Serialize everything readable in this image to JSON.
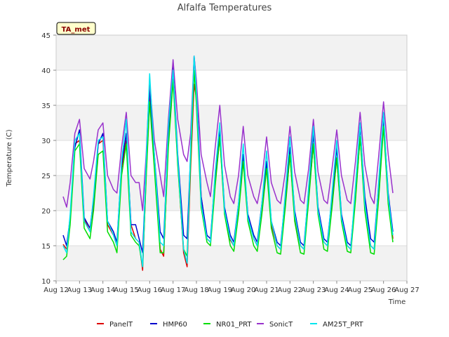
{
  "chart_data": {
    "type": "line",
    "title": "Alfalfa Temperatures",
    "xlabel": "Time",
    "ylabel": "Temperature (C)",
    "tag": "TA_met",
    "ylim": [
      10,
      45
    ],
    "xlim": [
      12,
      27
    ],
    "y_ticks": [
      10,
      15,
      20,
      25,
      30,
      35,
      40,
      45
    ],
    "x_ticks": [
      {
        "value": 12,
        "label": "Aug 12"
      },
      {
        "value": 13,
        "label": "Aug 13"
      },
      {
        "value": 14,
        "label": "Aug 14"
      },
      {
        "value": 15,
        "label": "Aug 15"
      },
      {
        "value": 16,
        "label": "Aug 16"
      },
      {
        "value": 17,
        "label": "Aug 17"
      },
      {
        "value": 18,
        "label": "Aug 18"
      },
      {
        "value": 19,
        "label": "Aug 19"
      },
      {
        "value": 20,
        "label": "Aug 20"
      },
      {
        "value": 21,
        "label": "Aug 21"
      },
      {
        "value": 22,
        "label": "Aug 22"
      },
      {
        "value": 23,
        "label": "Aug 23"
      },
      {
        "value": 24,
        "label": "Aug 24"
      },
      {
        "value": 25,
        "label": "Aug 25"
      },
      {
        "value": 26,
        "label": "Aug 26"
      },
      {
        "value": 27,
        "label": "Aug 27"
      }
    ],
    "grid": "horizontal bands",
    "legend_placement": "bottom",
    "series": [
      {
        "name": "PanelT",
        "color": "#dd0000",
        "x": [
          12.3,
          12.45,
          12.6,
          12.8,
          13.0,
          13.2,
          13.45,
          13.6,
          13.8,
          14.0,
          14.2,
          14.45,
          14.6,
          14.8,
          15.0,
          15.2,
          15.4,
          15.55,
          15.7,
          15.85,
          16.0,
          16.2,
          16.45,
          16.6,
          16.8,
          17.0,
          17.2,
          17.45,
          17.6,
          17.75,
          17.9,
          18.0,
          18.2,
          18.45,
          18.6,
          18.8,
          19.0,
          19.2,
          19.45,
          19.6,
          19.8,
          20.0,
          20.2,
          20.45,
          20.6,
          20.8,
          21.0,
          21.2,
          21.45,
          21.6,
          21.8,
          22.0,
          22.2,
          22.45,
          22.6,
          22.8,
          23.0,
          23.2,
          23.45,
          23.6,
          23.8,
          24.0,
          24.2,
          24.45,
          24.6,
          24.8,
          25.0,
          25.2,
          25.45,
          25.6,
          25.8,
          26.0,
          26.2,
          26.4
        ],
        "y": [
          15.2,
          14.5,
          18.5,
          29.5,
          30.0,
          18.8,
          17.0,
          21.0,
          29.5,
          30.0,
          18.0,
          16.5,
          15.0,
          26.0,
          30.0,
          18.0,
          16.0,
          15.5,
          11.5,
          25.0,
          36.0,
          27.0,
          14.5,
          13.5,
          30.0,
          39.0,
          27.0,
          14.0,
          12.0,
          26.0,
          38.0,
          36.0,
          22.0,
          16.0,
          15.5,
          24.0,
          30.5,
          20.0,
          15.8,
          15.0,
          20.0,
          27.5,
          19.0,
          16.0,
          15.0,
          20.0,
          26.5,
          18.0,
          15.0,
          14.5,
          21.0,
          28.0,
          19.0,
          15.0,
          14.5,
          22.0,
          29.5,
          20.0,
          15.5,
          15.0,
          21.0,
          27.5,
          19.0,
          15.0,
          14.5,
          22.0,
          30.5,
          21.0,
          15.0,
          14.5,
          23.0,
          32.5,
          22.0,
          16.0
        ]
      },
      {
        "name": "HMP60",
        "color": "#0000cc",
        "x": [
          12.3,
          12.45,
          12.6,
          12.8,
          13.0,
          13.2,
          13.45,
          13.6,
          13.8,
          14.0,
          14.2,
          14.45,
          14.6,
          14.8,
          15.0,
          15.2,
          15.4,
          15.55,
          15.7,
          15.85,
          16.0,
          16.2,
          16.45,
          16.6,
          16.8,
          17.0,
          17.2,
          17.45,
          17.6,
          17.75,
          17.9,
          18.0,
          18.2,
          18.45,
          18.6,
          18.8,
          19.0,
          19.2,
          19.45,
          19.6,
          19.8,
          20.0,
          20.2,
          20.45,
          20.6,
          20.8,
          21.0,
          21.2,
          21.45,
          21.6,
          21.8,
          22.0,
          22.2,
          22.45,
          22.6,
          22.8,
          23.0,
          23.2,
          23.45,
          23.6,
          23.8,
          24.0,
          24.2,
          24.45,
          24.6,
          24.8,
          25.0,
          25.2,
          25.45,
          25.6,
          25.8,
          26.0,
          26.2,
          26.4
        ],
        "y": [
          16.5,
          15.0,
          19.0,
          29.0,
          31.5,
          19.0,
          17.5,
          21.5,
          29.5,
          31.0,
          18.5,
          17.0,
          15.5,
          26.5,
          31.0,
          18.0,
          18.0,
          16.0,
          14.0,
          26.0,
          37.5,
          28.0,
          17.0,
          16.0,
          31.0,
          40.5,
          28.0,
          16.5,
          16.0,
          28.0,
          42.0,
          38.0,
          22.0,
          16.5,
          16.0,
          25.0,
          31.5,
          20.5,
          16.5,
          15.5,
          21.0,
          28.0,
          19.5,
          16.5,
          15.5,
          21.0,
          27.0,
          18.5,
          15.5,
          15.0,
          22.0,
          29.0,
          20.0,
          15.5,
          15.0,
          23.0,
          31.0,
          20.5,
          16.0,
          15.5,
          22.0,
          29.0,
          19.5,
          15.5,
          15.0,
          22.5,
          32.0,
          22.0,
          16.0,
          15.5,
          24.0,
          33.5,
          22.5,
          17.0
        ]
      },
      {
        "name": "NR01_PRT",
        "color": "#00dd00",
        "x": [
          12.3,
          12.45,
          12.6,
          12.8,
          13.0,
          13.2,
          13.45,
          13.6,
          13.8,
          14.0,
          14.2,
          14.45,
          14.6,
          14.8,
          15.0,
          15.2,
          15.4,
          15.55,
          15.7,
          15.85,
          16.0,
          16.2,
          16.45,
          16.6,
          16.8,
          17.0,
          17.2,
          17.45,
          17.6,
          17.75,
          17.9,
          18.0,
          18.2,
          18.45,
          18.6,
          18.8,
          19.0,
          19.2,
          19.45,
          19.6,
          19.8,
          20.0,
          20.2,
          20.45,
          20.6,
          20.8,
          21.0,
          21.2,
          21.45,
          21.6,
          21.8,
          22.0,
          22.2,
          22.45,
          22.6,
          22.8,
          23.0,
          23.2,
          23.45,
          23.6,
          23.8,
          24.0,
          24.2,
          24.45,
          24.6,
          24.8,
          25.0,
          25.2,
          25.45,
          25.6,
          25.8,
          26.0,
          26.2,
          26.4
        ],
        "y": [
          13.0,
          13.5,
          18.0,
          28.5,
          29.5,
          17.5,
          16.0,
          20.0,
          28.0,
          28.5,
          17.0,
          15.5,
          14.0,
          25.0,
          29.5,
          16.5,
          15.5,
          15.0,
          12.0,
          24.5,
          35.5,
          26.0,
          14.0,
          14.0,
          29.0,
          38.5,
          26.5,
          14.5,
          13.5,
          27.0,
          40.0,
          35.0,
          20.5,
          15.5,
          15.0,
          23.5,
          30.5,
          19.5,
          15.0,
          14.2,
          19.5,
          27.0,
          18.5,
          15.0,
          14.2,
          19.5,
          26.0,
          17.5,
          14.0,
          13.8,
          20.5,
          28.0,
          18.5,
          14.0,
          13.8,
          21.5,
          29.5,
          19.5,
          14.5,
          14.2,
          20.5,
          27.5,
          18.5,
          14.2,
          14.0,
          21.5,
          30.5,
          20.0,
          14.0,
          13.8,
          22.0,
          32.0,
          21.0,
          15.5
        ]
      },
      {
        "name": "SonicT",
        "color": "#9932cc",
        "x": [
          12.3,
          12.45,
          12.6,
          12.8,
          13.0,
          13.2,
          13.45,
          13.6,
          13.8,
          14.0,
          14.2,
          14.45,
          14.6,
          14.8,
          15.0,
          15.2,
          15.4,
          15.55,
          15.7,
          15.85,
          16.0,
          16.2,
          16.45,
          16.6,
          16.8,
          17.0,
          17.2,
          17.45,
          17.6,
          17.75,
          17.9,
          18.0,
          18.2,
          18.45,
          18.6,
          18.8,
          19.0,
          19.2,
          19.45,
          19.6,
          19.8,
          20.0,
          20.2,
          20.45,
          20.6,
          20.8,
          21.0,
          21.2,
          21.45,
          21.6,
          21.8,
          22.0,
          22.2,
          22.45,
          22.6,
          22.8,
          23.0,
          23.2,
          23.45,
          23.6,
          23.8,
          24.0,
          24.2,
          24.45,
          24.6,
          24.8,
          25.0,
          25.2,
          25.45,
          25.6,
          25.8,
          26.0,
          26.2,
          26.4
        ],
        "y": [
          22.0,
          20.5,
          24.0,
          31.0,
          33.0,
          26.0,
          24.5,
          27.0,
          31.5,
          32.5,
          25.0,
          23.0,
          22.5,
          29.0,
          34.0,
          25.0,
          24.0,
          24.0,
          20.0,
          28.0,
          38.5,
          30.0,
          25.0,
          22.0,
          33.0,
          41.5,
          33.0,
          28.0,
          27.0,
          31.0,
          42.0,
          38.5,
          28.0,
          24.0,
          22.0,
          29.0,
          35.0,
          26.5,
          22.0,
          21.0,
          25.0,
          32.0,
          25.0,
          22.0,
          21.0,
          24.5,
          30.5,
          24.0,
          21.5,
          21.0,
          25.5,
          32.0,
          25.5,
          21.5,
          21.0,
          26.0,
          33.0,
          25.5,
          21.5,
          21.0,
          26.0,
          31.5,
          25.0,
          21.5,
          21.0,
          27.0,
          34.0,
          26.5,
          22.0,
          21.0,
          28.0,
          35.5,
          28.0,
          22.5
        ]
      },
      {
        "name": "AM25T_PRT",
        "color": "#00e5ee",
        "x": [
          12.3,
          12.45,
          12.6,
          12.8,
          13.0,
          13.2,
          13.45,
          13.6,
          13.8,
          14.0,
          14.2,
          14.45,
          14.6,
          14.8,
          15.0,
          15.2,
          15.4,
          15.55,
          15.7,
          15.85,
          16.0,
          16.2,
          16.45,
          16.6,
          16.8,
          17.0,
          17.2,
          17.45,
          17.6,
          17.75,
          17.9,
          18.0,
          18.2,
          18.45,
          18.6,
          18.8,
          19.0,
          19.2,
          19.45,
          19.6,
          19.8,
          20.0,
          20.2,
          20.45,
          20.6,
          20.8,
          21.0,
          21.2,
          21.45,
          21.6,
          21.8,
          22.0,
          22.2,
          22.45,
          22.6,
          22.8,
          23.0,
          23.2,
          23.45,
          23.6,
          23.8,
          24.0,
          24.2,
          24.45,
          24.6,
          24.8,
          25.0,
          25.2,
          25.45,
          25.6,
          25.8,
          26.0,
          26.2,
          26.4
        ],
        "y": [
          15.0,
          14.0,
          19.5,
          30.0,
          31.0,
          18.5,
          17.0,
          22.0,
          30.0,
          30.5,
          18.5,
          16.5,
          15.0,
          27.0,
          33.0,
          17.0,
          16.0,
          15.5,
          12.0,
          27.0,
          39.5,
          28.0,
          15.5,
          15.0,
          32.0,
          40.0,
          27.5,
          14.5,
          12.5,
          29.0,
          42.0,
          37.0,
          21.0,
          16.0,
          15.5,
          25.5,
          32.5,
          20.0,
          16.0,
          15.0,
          21.0,
          29.5,
          19.0,
          16.0,
          15.0,
          21.0,
          28.5,
          18.5,
          15.0,
          14.5,
          22.5,
          30.5,
          19.5,
          15.0,
          14.5,
          23.5,
          32.0,
          20.0,
          15.5,
          15.0,
          22.5,
          30.0,
          19.0,
          15.0,
          14.5,
          23.5,
          32.5,
          21.0,
          15.0,
          14.5,
          24.5,
          34.0,
          22.0,
          16.5
        ]
      }
    ]
  }
}
